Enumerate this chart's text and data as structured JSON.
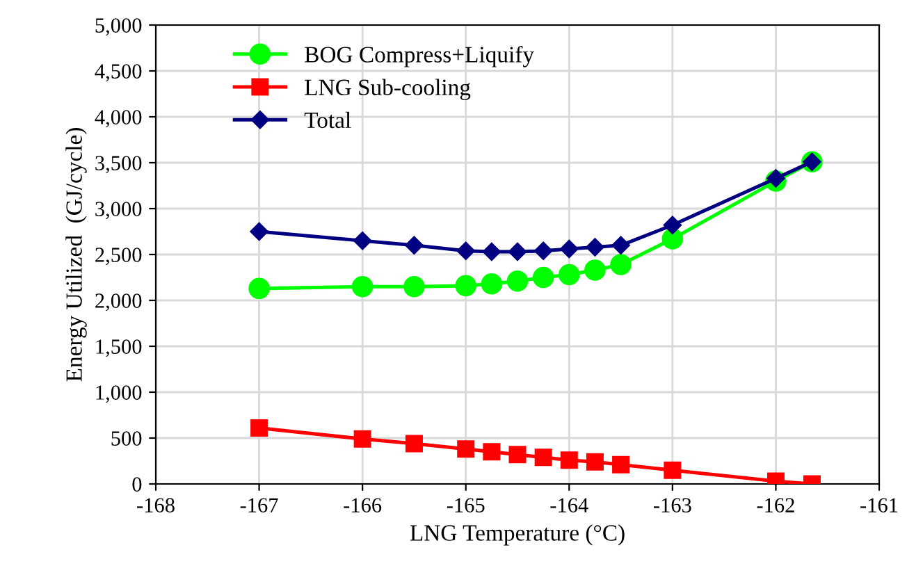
{
  "chart_data": {
    "type": "line",
    "xlabel": "LNG Temperature (°C)",
    "ylabel": "Energy Utilized  (GJ/cycle)",
    "x": [
      -167,
      -166,
      -165.5,
      -165,
      -164.75,
      -164.5,
      -164.25,
      -164,
      -163.75,
      -163.5,
      -163,
      -162,
      -161.65
    ],
    "series": [
      {
        "name": "BOG Compress+Liquify",
        "color": "#00ff00",
        "marker": "circle",
        "values": [
          2130,
          2150,
          2150,
          2160,
          2180,
          2210,
          2250,
          2280,
          2330,
          2390,
          2670,
          3300,
          3510
        ]
      },
      {
        "name": "LNG Sub-cooling",
        "color": "#ff0000",
        "marker": "square",
        "values": [
          610,
          490,
          440,
          380,
          350,
          320,
          290,
          260,
          240,
          210,
          150,
          30,
          0
        ]
      },
      {
        "name": "Total",
        "color": "#000080",
        "marker": "diamond",
        "values": [
          2750,
          2650,
          2600,
          2540,
          2530,
          2530,
          2540,
          2560,
          2580,
          2600,
          2820,
          3330,
          3510
        ]
      }
    ],
    "xlim": [
      -168,
      -161
    ],
    "xticks": [
      -168,
      -167,
      -166,
      -165,
      -164,
      -163,
      -162,
      -161
    ],
    "ylim": [
      0,
      5000
    ],
    "yticks": [
      {
        "value": 0,
        "label": "0"
      },
      {
        "value": 500,
        "label": "500"
      },
      {
        "value": 1000,
        "label": "1,000"
      },
      {
        "value": 1500,
        "label": "1,500"
      },
      {
        "value": 2000,
        "label": "2,000"
      },
      {
        "value": 2500,
        "label": "2,500"
      },
      {
        "value": 3000,
        "label": "3,000"
      },
      {
        "value": 3500,
        "label": "3,500"
      },
      {
        "value": 4000,
        "label": "4,000"
      },
      {
        "value": 4500,
        "label": "4,500"
      },
      {
        "value": 5000,
        "label": "5,000"
      }
    ],
    "grid": true,
    "legend": "top left"
  }
}
